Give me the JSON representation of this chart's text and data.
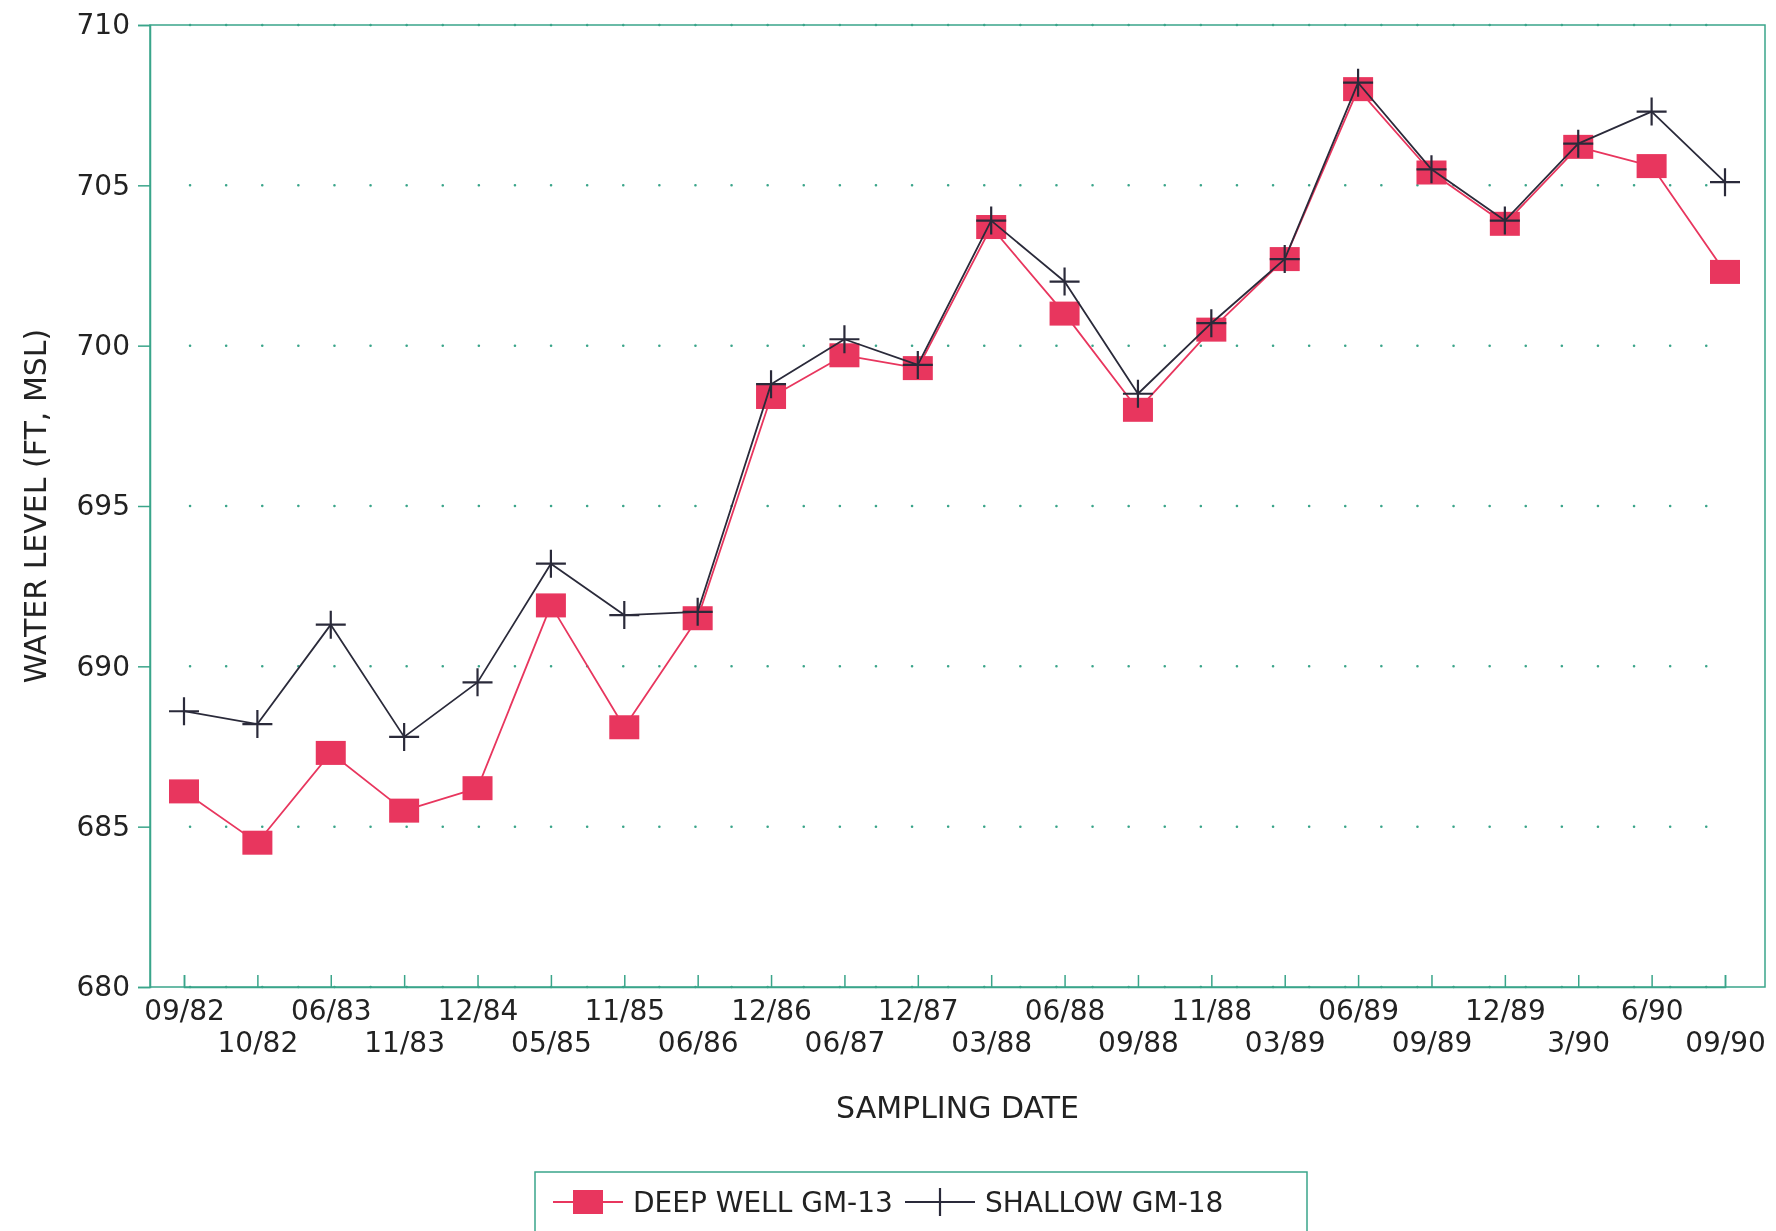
{
  "chart_data": {
    "type": "line",
    "xlabel": "SAMPLING DATE",
    "ylabel": "WATER LEVEL (FT, MSL)",
    "categories": [
      "09/82",
      "10/82",
      "06/83",
      "11/83",
      "12/84",
      "05/85",
      "11/85",
      "06/86",
      "12/86",
      "06/87",
      "12/87",
      "03/88",
      "06/88",
      "09/88",
      "11/88",
      "03/89",
      "06/89",
      "09/89",
      "12/89",
      "3/90",
      "6/90",
      "09/90"
    ],
    "series": [
      {
        "name": "DEEP WELL GM-13",
        "color": "#e8365e",
        "marker": "square",
        "values": [
          686.1,
          684.5,
          687.3,
          685.5,
          686.2,
          691.9,
          688.1,
          691.5,
          698.4,
          699.7,
          699.3,
          703.7,
          701.0,
          698.0,
          700.5,
          702.7,
          708.0,
          705.4,
          703.8,
          706.2,
          705.6,
          702.3
        ]
      },
      {
        "name": "SHALLOW GM-18",
        "color": "#2a2a3a",
        "marker": "cross",
        "values": [
          688.6,
          688.2,
          691.3,
          687.8,
          689.5,
          693.2,
          691.6,
          691.7,
          698.8,
          700.2,
          699.4,
          703.9,
          702.0,
          698.5,
          700.7,
          702.7,
          708.2,
          705.5,
          703.9,
          706.3,
          707.3,
          705.1
        ]
      }
    ],
    "ylim": [
      680,
      710
    ],
    "yticks": [
      680,
      685,
      690,
      695,
      700,
      705,
      710
    ],
    "grid": "y",
    "legend": "bottom",
    "line_style": "solid"
  }
}
